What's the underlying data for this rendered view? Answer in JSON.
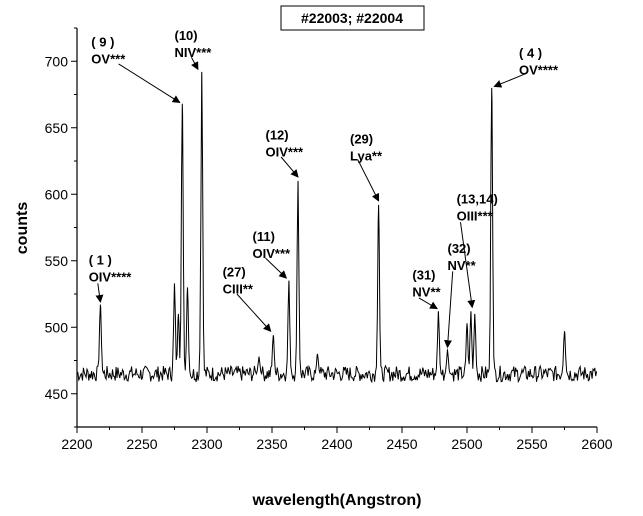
{
  "chart_data": {
    "type": "line",
    "title": "#22003; #22004",
    "xlabel": "wavelength(Angstron)",
    "ylabel": "counts",
    "xlim": [
      2200,
      2600
    ],
    "ylim": [
      425,
      725
    ],
    "xticks": [
      2200,
      2250,
      2300,
      2350,
      2400,
      2450,
      2500,
      2550,
      2600
    ],
    "yticks": [
      450,
      500,
      550,
      600,
      650,
      700
    ],
    "baseline": 465,
    "noise_amplitude": 6,
    "grid": false,
    "legend": "none",
    "line_color": "#000000",
    "peaks": [
      {
        "x": 2218,
        "y": 517
      },
      {
        "x": 2275,
        "y": 533
      },
      {
        "x": 2278,
        "y": 510
      },
      {
        "x": 2281,
        "y": 668
      },
      {
        "x": 2285,
        "y": 530
      },
      {
        "x": 2296,
        "y": 692
      },
      {
        "x": 2340,
        "y": 478
      },
      {
        "x": 2351,
        "y": 494
      },
      {
        "x": 2363,
        "y": 535
      },
      {
        "x": 2370,
        "y": 610
      },
      {
        "x": 2385,
        "y": 480
      },
      {
        "x": 2432,
        "y": 592
      },
      {
        "x": 2478,
        "y": 512
      },
      {
        "x": 2485,
        "y": 483
      },
      {
        "x": 2500,
        "y": 503
      },
      {
        "x": 2503,
        "y": 512
      },
      {
        "x": 2506,
        "y": 510
      },
      {
        "x": 2519,
        "y": 680
      },
      {
        "x": 2575,
        "y": 497
      }
    ],
    "annotations": [
      {
        "label": [
          "( 1 )",
          "OIV****"
        ],
        "tx": 2209,
        "ty": 547,
        "ax": 2216,
        "ay": 533,
        "bx": 2218,
        "by": 519
      },
      {
        "label": [
          "( 9 )",
          "OV***"
        ],
        "tx": 2211,
        "ty": 711,
        "ax": 2232,
        "ay": 698,
        "bx": 2279,
        "by": 669
      },
      {
        "label": [
          "(10)",
          "NIV***"
        ],
        "tx": 2275,
        "ty": 716,
        "ax": 2288,
        "ay": 703,
        "bx": 2293,
        "by": 694
      },
      {
        "label": [
          "(12)",
          "OIV***"
        ],
        "tx": 2345,
        "ty": 641,
        "ax": 2357,
        "ay": 628,
        "bx": 2370,
        "by": 613
      },
      {
        "label": [
          "(11)",
          "OIV***"
        ],
        "tx": 2335,
        "ty": 565,
        "ax": 2345,
        "ay": 552,
        "bx": 2361,
        "by": 537
      },
      {
        "label": [
          "(27)",
          "CIII**"
        ],
        "tx": 2312,
        "ty": 538,
        "ax": 2323,
        "ay": 525,
        "bx": 2349,
        "by": 497
      },
      {
        "label": [
          "(29)",
          "Lya**"
        ],
        "tx": 2410,
        "ty": 638,
        "ax": 2416,
        "ay": 626,
        "bx": 2432,
        "by": 595
      },
      {
        "label": [
          "(31)",
          "NV**"
        ],
        "tx": 2458,
        "ty": 536,
        "ax": 2463,
        "ay": 522,
        "bx": 2477,
        "by": 514
      },
      {
        "label": [
          "(32)",
          "NV**"
        ],
        "tx": 2485,
        "ty": 556,
        "ax": 2489,
        "ay": 542,
        "bx": 2485,
        "by": 485
      },
      {
        "label": [
          "(13,14)",
          "OIII***"
        ],
        "tx": 2492,
        "ty": 593,
        "ax": 2495,
        "ay": 579,
        "bx": 2504,
        "by": 515
      },
      {
        "label": [
          "( 4 )",
          "OV****"
        ],
        "tx": 2540,
        "ty": 703,
        "ax": 2546,
        "ay": 691,
        "bx": 2521,
        "by": 681
      }
    ]
  }
}
